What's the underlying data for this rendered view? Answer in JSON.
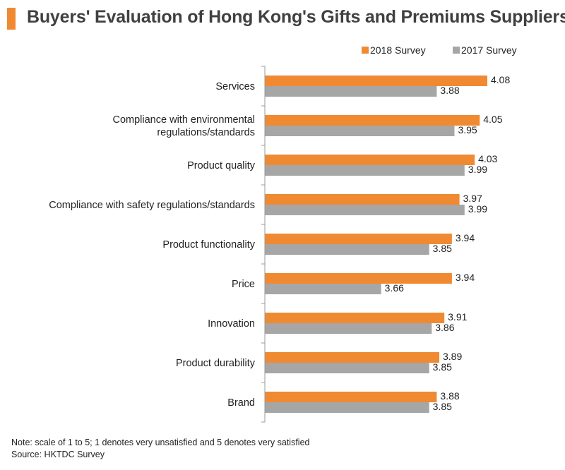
{
  "title": "Buyers' Evaluation of Hong Kong's Gifts and Premiums Suppliers",
  "note": "Note: scale of 1 to 5; 1 denotes very unsatisfied and 5 denotes very satisfied",
  "source": "Source: HKTDC Survey",
  "colors": {
    "accent": "#F08A32",
    "series_2018": "#F08A32",
    "series_2017": "#A6A6A6",
    "axis": "#9A9A9A"
  },
  "chart_data": {
    "type": "bar",
    "orientation": "horizontal",
    "title": "Buyers' Evaluation of Hong Kong's Gifts and Premiums Suppliers",
    "categories": [
      [
        "Services"
      ],
      [
        "Compliance with environmental",
        "regulations/standards"
      ],
      [
        "Product quality"
      ],
      [
        "Compliance with safety regulations/standards"
      ],
      [
        "Product functionality"
      ],
      [
        "Price"
      ],
      [
        "Innovation"
      ],
      [
        "Product durability"
      ],
      [
        "Brand"
      ]
    ],
    "series": [
      {
        "name": "2018 Survey",
        "color": "#F08A32",
        "values": [
          4.08,
          4.05,
          4.03,
          3.97,
          3.94,
          3.94,
          3.91,
          3.89,
          3.88
        ],
        "labels": [
          "4.08",
          "4.05",
          "4.03",
          "3.97",
          "3.94",
          "3.94",
          "3.91",
          "3.89",
          "3.88"
        ]
      },
      {
        "name": "2017 Survey",
        "color": "#A6A6A6",
        "values": [
          3.88,
          3.95,
          3.99,
          3.99,
          3.85,
          3.66,
          3.86,
          3.85,
          3.85
        ],
        "labels": [
          "3.88",
          "3.95",
          "3.99",
          "3.99",
          "3.85",
          "3.66",
          "3.86",
          "3.85",
          "3.85"
        ]
      }
    ],
    "xlim": [
      3.2,
      4.2
    ],
    "grid": false,
    "legend_position": "top-right"
  }
}
